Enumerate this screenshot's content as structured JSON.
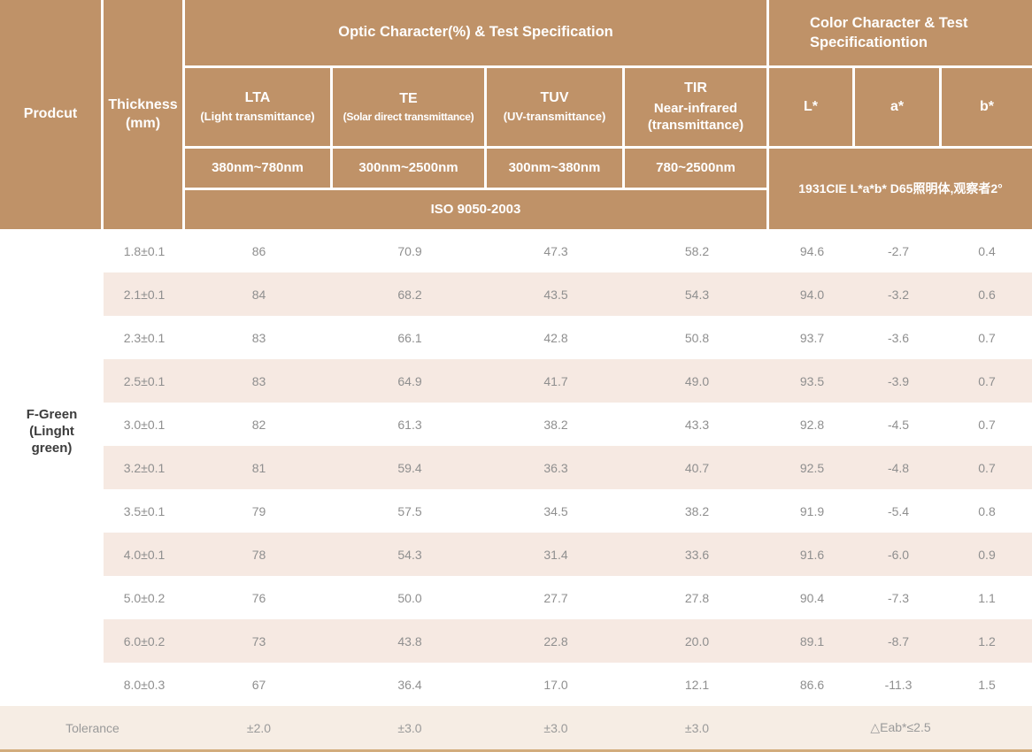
{
  "table": {
    "header": {
      "product_label": "Prodcut",
      "thickness_label": "Thickness\n(mm)",
      "optic_group": "Optic Character(%) & Test Specification",
      "color_group": "Color Character & Test\nSpecificationtion",
      "optic_columns": [
        {
          "title": "LTA",
          "subtitle": "(Light transmittance)",
          "range": "380nm~780nm"
        },
        {
          "title": "TE",
          "subtitle": "(Solar direct transmittance)",
          "range": "300nm~2500nm"
        },
        {
          "title": "TUV",
          "subtitle": "(UV-transmittance)",
          "range": "300nm~380nm"
        },
        {
          "title": "TIR",
          "subtitle": "Near-infrared\n(transmittance)",
          "range": "780~2500nm"
        }
      ],
      "color_columns": [
        "L*",
        "a*",
        "b*"
      ],
      "iso_standard": "ISO 9050-2003",
      "cie_standard": "1931CIE L*a*b*  D65照明体,观察者2°"
    },
    "product_name": "F-Green\n(Linght\ngreen)",
    "rows": [
      {
        "thickness": "1.8±0.1",
        "lta": "86",
        "te": "70.9",
        "tuv": "47.3",
        "tir": "58.2",
        "l": "94.6",
        "a": "-2.7",
        "b": "0.4"
      },
      {
        "thickness": "2.1±0.1",
        "lta": "84",
        "te": "68.2",
        "tuv": "43.5",
        "tir": "54.3",
        "l": "94.0",
        "a": "-3.2",
        "b": "0.6"
      },
      {
        "thickness": "2.3±0.1",
        "lta": "83",
        "te": "66.1",
        "tuv": "42.8",
        "tir": "50.8",
        "l": "93.7",
        "a": "-3.6",
        "b": "0.7"
      },
      {
        "thickness": "2.5±0.1",
        "lta": "83",
        "te": "64.9",
        "tuv": "41.7",
        "tir": "49.0",
        "l": "93.5",
        "a": "-3.9",
        "b": "0.7"
      },
      {
        "thickness": "3.0±0.1",
        "lta": "82",
        "te": "61.3",
        "tuv": "38.2",
        "tir": "43.3",
        "l": "92.8",
        "a": "-4.5",
        "b": "0.7"
      },
      {
        "thickness": "3.2±0.1",
        "lta": "81",
        "te": "59.4",
        "tuv": "36.3",
        "tir": "40.7",
        "l": "92.5",
        "a": "-4.8",
        "b": "0.7"
      },
      {
        "thickness": "3.5±0.1",
        "lta": "79",
        "te": "57.5",
        "tuv": "34.5",
        "tir": "38.2",
        "l": "91.9",
        "a": "-5.4",
        "b": "0.8"
      },
      {
        "thickness": "4.0±0.1",
        "lta": "78",
        "te": "54.3",
        "tuv": "31.4",
        "tir": "33.6",
        "l": "91.6",
        "a": "-6.0",
        "b": "0.9"
      },
      {
        "thickness": "5.0±0.2",
        "lta": "76",
        "te": "50.0",
        "tuv": "27.7",
        "tir": "27.8",
        "l": "90.4",
        "a": "-7.3",
        "b": "1.1"
      },
      {
        "thickness": "6.0±0.2",
        "lta": "73",
        "te": "43.8",
        "tuv": "22.8",
        "tir": "20.0",
        "l": "89.1",
        "a": "-8.7",
        "b": "1.2"
      },
      {
        "thickness": "8.0±0.3",
        "lta": "67",
        "te": "36.4",
        "tuv": "17.0",
        "tir": "12.1",
        "l": "86.6",
        "a": "-11.3",
        "b": "1.5"
      }
    ],
    "tolerance": {
      "label": "Tolerance",
      "lta": "±2.0",
      "te": "±3.0",
      "tuv": "±3.0",
      "tir": "±3.0",
      "color": "△Eab*≤2.5"
    },
    "colors": {
      "header_brown": "#bf9268",
      "row_shade": "#f6e9e2",
      "tolerance_bg": "#f6ede4",
      "bottom_border": "#d2ac7c"
    }
  }
}
